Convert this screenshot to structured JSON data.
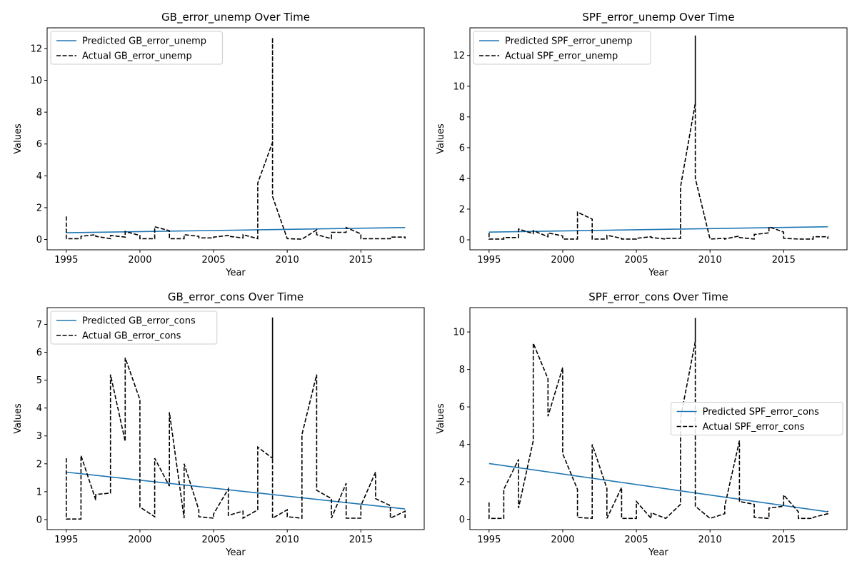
{
  "colors": {
    "predicted": "#1f77b4",
    "actual": "#000000"
  },
  "charts": [
    {
      "title": "GB_error_unemp Over Time",
      "xlabel": "Year",
      "ylabel": "Values",
      "legend": [
        "Predicted GB_error_unemp",
        "Actual GB_error_unemp"
      ]
    },
    {
      "title": "SPF_error_unemp Over Time",
      "xlabel": "Year",
      "ylabel": "Values",
      "legend": [
        "Predicted SPF_error_unemp",
        "Actual SPF_error_unemp"
      ]
    },
    {
      "title": "GB_error_cons Over Time",
      "xlabel": "Year",
      "ylabel": "Values",
      "legend": [
        "Predicted GB_error_cons",
        "Actual GB_error_cons"
      ]
    },
    {
      "title": "SPF_error_cons Over Time",
      "xlabel": "Year",
      "ylabel": "Values",
      "legend": [
        "Predicted SPF_error_cons",
        "Actual SPF_error_cons"
      ]
    }
  ],
  "chart_data": [
    {
      "type": "line",
      "title": "GB_error_unemp Over Time",
      "xlabel": "Year",
      "ylabel": "Values",
      "xlim": [
        1993.7,
        2019.3
      ],
      "ylim": [
        -0.65,
        13.3
      ],
      "xticks": [
        1995,
        2000,
        2005,
        2010,
        2015
      ],
      "yticks": [
        0,
        2,
        4,
        6,
        8,
        10,
        12
      ],
      "legend_position": "top-left",
      "grid": false,
      "predicted": {
        "name": "Predicted GB_error_unemp",
        "x": [
          1995,
          2018
        ],
        "y": [
          0.42,
          0.75
        ]
      },
      "actual": {
        "name": "Actual GB_error_unemp",
        "x": [
          1995,
          1995,
          1996,
          1996,
          1997,
          1997,
          1998,
          1998,
          1999,
          1999,
          2000,
          2000,
          2001,
          2001,
          2002,
          2002,
          2003,
          2003,
          2004,
          2004,
          2005,
          2005,
          2006,
          2006,
          2007,
          2007,
          2008,
          2008,
          2009,
          2009,
          2009,
          2010,
          2010,
          2011,
          2011,
          2012,
          2012,
          2013,
          2013,
          2014,
          2014,
          2015,
          2015,
          2016,
          2016,
          2017,
          2017,
          2018,
          2018
        ],
        "y": [
          1.45,
          0.05,
          0.05,
          0.2,
          0.3,
          0.2,
          0.05,
          0.25,
          0.15,
          0.5,
          0.25,
          0.05,
          0.05,
          0.8,
          0.55,
          0.05,
          0.05,
          0.3,
          0.2,
          0.1,
          0.1,
          0.15,
          0.25,
          0.2,
          0.1,
          0.3,
          0.05,
          3.55,
          6.1,
          12.7,
          2.7,
          0.05,
          0.05,
          0.02,
          0.02,
          0.6,
          0.3,
          0.05,
          0.45,
          0.45,
          0.75,
          0.35,
          0.05,
          0.05,
          0.05,
          0.05,
          0.15,
          0.15,
          0.05
        ]
      }
    },
    {
      "type": "line",
      "title": "SPF_error_unemp Over Time",
      "xlabel": "Year",
      "ylabel": "Values",
      "xlim": [
        1993.7,
        2019.3
      ],
      "ylim": [
        -0.65,
        13.8
      ],
      "xticks": [
        1995,
        2000,
        2005,
        2010,
        2015
      ],
      "yticks": [
        0,
        2,
        4,
        6,
        8,
        10,
        12
      ],
      "legend_position": "top-left",
      "grid": false,
      "predicted": {
        "name": "Predicted SPF_error_unemp",
        "x": [
          1995,
          2018
        ],
        "y": [
          0.5,
          0.85
        ]
      },
      "actual": {
        "name": "Actual SPF_error_unemp",
        "x": [
          1995,
          1995,
          1996,
          1996,
          1997,
          1997,
          1998,
          1998,
          1999,
          1999,
          2000,
          2000,
          2001,
          2001,
          2002,
          2002,
          2003,
          2003,
          2004,
          2004,
          2005,
          2005,
          2006,
          2006,
          2007,
          2007,
          2008,
          2008,
          2009,
          2009,
          2009,
          2010,
          2010,
          2011,
          2011,
          2012,
          2012,
          2013,
          2013,
          2014,
          2014,
          2015,
          2015,
          2016,
          2016,
          2017,
          2017,
          2018,
          2018
        ],
        "y": [
          0.45,
          0.05,
          0.05,
          0.15,
          0.15,
          0.7,
          0.4,
          0.6,
          0.2,
          0.45,
          0.25,
          0.05,
          0.05,
          1.8,
          1.35,
          0.05,
          0.05,
          0.3,
          0.1,
          0.05,
          0.05,
          0.1,
          0.2,
          0.15,
          0.05,
          0.1,
          0.1,
          3.45,
          8.9,
          13.3,
          4.0,
          0.05,
          0.05,
          0.1,
          0.05,
          0.25,
          0.15,
          0.05,
          0.35,
          0.45,
          0.85,
          0.5,
          0.1,
          0.05,
          0.05,
          0.05,
          0.2,
          0.2,
          0.05
        ]
      }
    },
    {
      "type": "line",
      "title": "GB_error_cons Over Time",
      "xlabel": "Year",
      "ylabel": "Values",
      "xlim": [
        1993.7,
        2019.3
      ],
      "ylim": [
        -0.36,
        7.6
      ],
      "xticks": [
        1995,
        2000,
        2005,
        2010,
        2015
      ],
      "yticks": [
        0,
        1,
        2,
        3,
        4,
        5,
        6,
        7
      ],
      "legend_position": "top-left",
      "grid": false,
      "predicted": {
        "name": "Predicted GB_error_cons",
        "x": [
          1995,
          2018
        ],
        "y": [
          1.7,
          0.38
        ]
      },
      "actual": {
        "name": "Actual GB_error_cons",
        "x": [
          1995,
          1995,
          1996,
          1996,
          1997,
          1997,
          1998,
          1998,
          1999,
          1999,
          2000,
          2000,
          2001,
          2001,
          2002,
          2002,
          2003,
          2003,
          2004,
          2004,
          2005,
          2005,
          2006,
          2006,
          2007,
          2007,
          2008,
          2008,
          2009,
          2009,
          2009,
          2010,
          2010,
          2011,
          2011,
          2012,
          2012,
          2013,
          2013,
          2014,
          2014,
          2015,
          2015,
          2016,
          2016,
          2017,
          2017,
          2018,
          2018
        ],
        "y": [
          2.2,
          0.02,
          0.02,
          2.3,
          0.7,
          0.9,
          0.95,
          5.2,
          2.8,
          5.8,
          4.3,
          0.45,
          0.1,
          2.2,
          1.2,
          3.85,
          0.05,
          2.0,
          0.35,
          0.1,
          0.05,
          0.2,
          1.1,
          0.15,
          0.3,
          0.05,
          0.35,
          2.6,
          2.2,
          7.25,
          0.05,
          0.35,
          0.1,
          0.05,
          3.05,
          5.2,
          1.05,
          0.75,
          0.05,
          1.3,
          0.05,
          0.05,
          0.5,
          1.7,
          0.75,
          0.5,
          0.05,
          0.3,
          0.05
        ]
      }
    },
    {
      "type": "line",
      "title": "SPF_error_cons Over Time",
      "xlabel": "Year",
      "ylabel": "Values",
      "xlim": [
        1993.7,
        2019.3
      ],
      "ylim": [
        -0.55,
        11.3
      ],
      "xticks": [
        1995,
        2000,
        2005,
        2010,
        2015
      ],
      "yticks": [
        0,
        2,
        4,
        6,
        8,
        10
      ],
      "legend_position": "center-right",
      "grid": false,
      "predicted": {
        "name": "Predicted SPF_error_cons",
        "x": [
          1995,
          2018
        ],
        "y": [
          2.98,
          0.4
        ]
      },
      "actual": {
        "name": "Actual SPF_error_cons",
        "x": [
          1995,
          1995,
          1996,
          1996,
          1997,
          1997,
          1998,
          1998,
          1999,
          1999,
          2000,
          2000,
          2001,
          2001,
          2002,
          2002,
          2003,
          2003,
          2004,
          2004,
          2005,
          2005,
          2006,
          2006,
          2007,
          2007,
          2008,
          2008,
          2009,
          2009,
          2009,
          2010,
          2010,
          2011,
          2011,
          2012,
          2012,
          2013,
          2013,
          2014,
          2014,
          2015,
          2015,
          2016,
          2016,
          2017,
          2017,
          2018,
          2018
        ],
        "y": [
          0.9,
          0.05,
          0.05,
          1.6,
          3.2,
          0.6,
          4.2,
          9.4,
          7.5,
          5.5,
          8.1,
          3.5,
          1.6,
          0.1,
          0.05,
          4.0,
          1.65,
          0.05,
          1.7,
          0.05,
          0.05,
          0.95,
          0.05,
          0.35,
          0.05,
          0.05,
          0.8,
          5.4,
          9.5,
          10.75,
          0.7,
          0.05,
          0.05,
          0.3,
          0.7,
          4.2,
          0.95,
          0.8,
          0.1,
          0.05,
          0.6,
          0.7,
          1.3,
          0.4,
          0.05,
          0.05,
          0.1,
          0.3,
          0.45
        ]
      }
    }
  ]
}
